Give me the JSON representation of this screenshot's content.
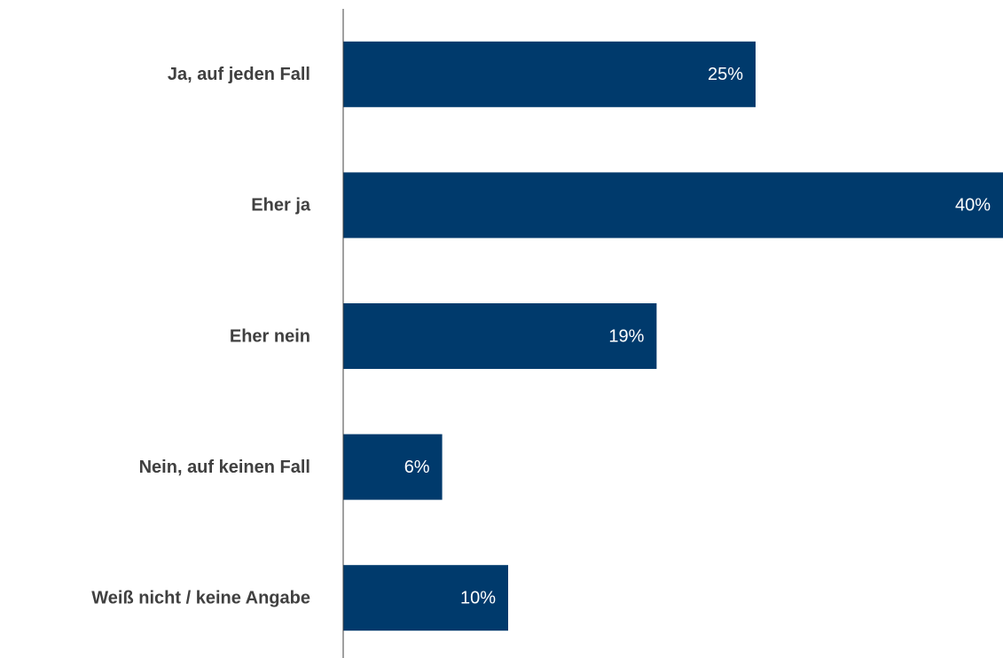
{
  "chart_data": {
    "type": "bar",
    "orientation": "horizontal",
    "categories": [
      "Ja, auf jeden Fall",
      "Eher ja",
      "Eher nein",
      "Nein, auf keinen Fall",
      "Weiß nicht / keine Angabe"
    ],
    "values": [
      25,
      40,
      19,
      6,
      10
    ],
    "value_labels": [
      "25%",
      "40%",
      "19%",
      "6%",
      "10%"
    ],
    "color": "#003a6c",
    "xlim": [
      0,
      40
    ]
  }
}
